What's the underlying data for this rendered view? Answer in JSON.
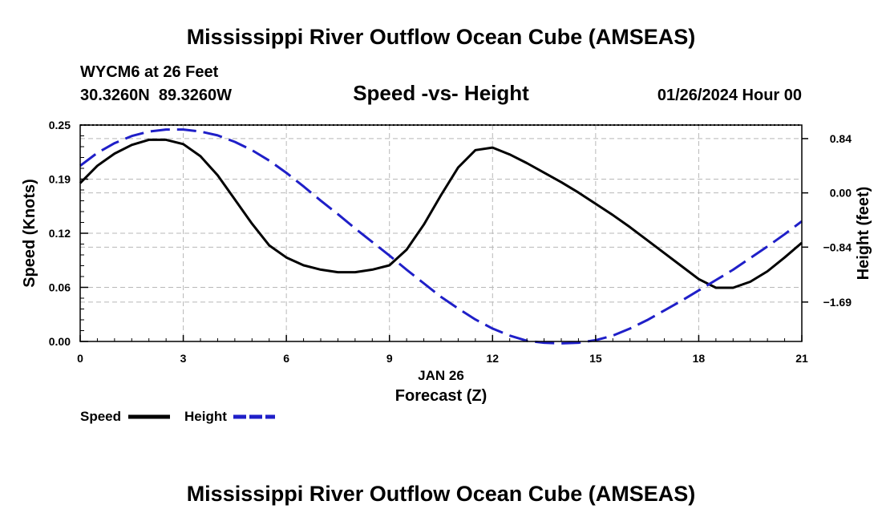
{
  "page": {
    "title": "Mississippi River Outflow Ocean Cube (AMSEAS)",
    "station_line": "WYCM6 at 26 Feet",
    "coords_line": "30.3260N  89.3260W",
    "subtitle": "Speed -vs- Height",
    "datetime": "01/26/2024 Hour 00",
    "footer_title": "Mississippi River Outflow Ocean Cube (AMSEAS)"
  },
  "chart_data": {
    "type": "line",
    "title": "Speed -vs- Height",
    "xlabel": "Forecast (Z)",
    "xsublabel": "JAN 26",
    "ylabel": "Speed (Knots)",
    "y2label": "Height (feet)",
    "xlim": [
      0,
      21
    ],
    "ylim": [
      0,
      0.25
    ],
    "y2lim": [
      -2.3,
      1.05
    ],
    "grid": true,
    "legend_position": "bottom-left",
    "x_ticks": [
      0,
      3,
      6,
      9,
      12,
      15,
      18,
      21
    ],
    "x_tick_labels": [
      "0",
      "3",
      "6",
      "9",
      "12",
      "15",
      "18",
      "21"
    ],
    "y_ticks": [
      0.0,
      0.0625,
      0.125,
      0.1875,
      0.25
    ],
    "y_tick_labels": [
      "0.00",
      "0.06",
      "0.12",
      "0.19",
      "0.25"
    ],
    "y2_ticks": [
      0.84,
      0.0,
      -0.84,
      -1.69
    ],
    "y2_tick_labels": [
      "0.84",
      "0.00",
      "−0.84",
      "−1.69"
    ],
    "series": [
      {
        "name": "Speed",
        "axis": "left",
        "color": "#000000",
        "dashed": false,
        "x": [
          0,
          0.5,
          1,
          1.5,
          2,
          2.5,
          3,
          3.5,
          4,
          4.5,
          5,
          5.5,
          6,
          6.5,
          7,
          7.5,
          8,
          8.5,
          9,
          9.5,
          10,
          10.5,
          11,
          11.5,
          12,
          12.5,
          13,
          13.5,
          14,
          14.5,
          15,
          15.5,
          16,
          16.5,
          17,
          17.5,
          18,
          18.5,
          19,
          19.5,
          20,
          20.5,
          21
        ],
        "values": [
          0.183,
          0.203,
          0.217,
          0.227,
          0.233,
          0.233,
          0.228,
          0.214,
          0.192,
          0.164,
          0.136,
          0.111,
          0.097,
          0.088,
          0.083,
          0.08,
          0.08,
          0.083,
          0.088,
          0.106,
          0.135,
          0.169,
          0.201,
          0.221,
          0.224,
          0.216,
          0.206,
          0.195,
          0.184,
          0.172,
          0.159,
          0.146,
          0.132,
          0.117,
          0.102,
          0.087,
          0.072,
          0.062,
          0.062,
          0.069,
          0.081,
          0.097,
          0.114
        ]
      },
      {
        "name": "Height",
        "axis": "right",
        "color": "#1f1fc8",
        "dashed": true,
        "x": [
          0,
          0.5,
          1,
          1.5,
          2,
          2.5,
          3,
          3.5,
          4,
          4.5,
          5,
          5.5,
          6,
          6.5,
          7,
          7.5,
          8,
          8.5,
          9,
          9.5,
          10,
          10.5,
          11,
          11.5,
          12,
          12.5,
          13,
          13.5,
          14,
          14.5,
          15,
          15.5,
          16,
          16.5,
          17,
          17.5,
          18,
          18.5,
          19,
          19.5,
          20,
          20.5,
          21
        ],
        "values": [
          0.42,
          0.62,
          0.77,
          0.88,
          0.95,
          0.98,
          0.98,
          0.95,
          0.89,
          0.79,
          0.66,
          0.5,
          0.31,
          0.1,
          -0.12,
          -0.33,
          -0.55,
          -0.76,
          -0.97,
          -1.19,
          -1.4,
          -1.61,
          -1.79,
          -1.96,
          -2.1,
          -2.21,
          -2.29,
          -2.32,
          -2.33,
          -2.32,
          -2.28,
          -2.21,
          -2.1,
          -1.97,
          -1.82,
          -1.67,
          -1.51,
          -1.35,
          -1.19,
          -1.01,
          -0.83,
          -0.64,
          -0.44
        ]
      }
    ]
  }
}
